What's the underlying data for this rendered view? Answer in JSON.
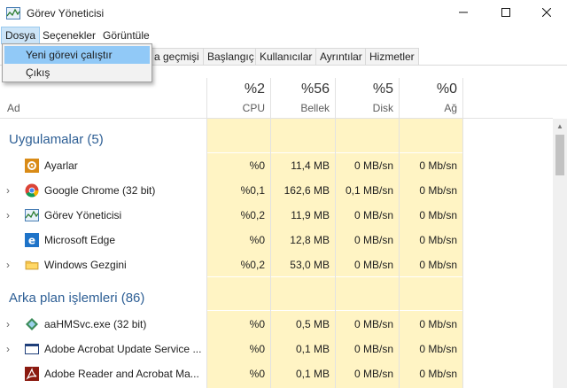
{
  "window": {
    "title": "Görev Yöneticisi"
  },
  "menubar": {
    "items": [
      "Dosya",
      "Seçenekler",
      "Görüntüle"
    ]
  },
  "dropdown": {
    "items": [
      "Yeni görevi çalıştır",
      "Çıkış"
    ],
    "highlighted_index": 0
  },
  "tabs": [
    "a geçmişi",
    "Başlangıç",
    "Kullanıcılar",
    "Ayrıntılar",
    "Hizmetler"
  ],
  "columns": {
    "name": "Ad",
    "cpu": {
      "pct": "%2",
      "label": "CPU"
    },
    "mem": {
      "pct": "%56",
      "label": "Bellek"
    },
    "disk": {
      "pct": "%5",
      "label": "Disk"
    },
    "net": {
      "pct": "%0",
      "label": "Ağ"
    }
  },
  "groups": {
    "apps": "Uygulamalar (5)",
    "background": "Arka plan işlemleri (86)"
  },
  "rows": [
    {
      "name": "Ayarlar",
      "icon": "settings-gear-icon",
      "expandable": false,
      "cpu": "%0",
      "mem": "11,4 MB",
      "disk": "0 MB/sn",
      "net": "0 Mb/sn"
    },
    {
      "name": "Google Chrome (32 bit)",
      "icon": "chrome-icon",
      "expandable": true,
      "cpu": "%0,1",
      "mem": "162,6 MB",
      "disk": "0,1 MB/sn",
      "net": "0 Mb/sn"
    },
    {
      "name": "Görev Yöneticisi",
      "icon": "task-manager-icon",
      "expandable": true,
      "cpu": "%0,2",
      "mem": "11,9 MB",
      "disk": "0 MB/sn",
      "net": "0 Mb/sn"
    },
    {
      "name": "Microsoft Edge",
      "icon": "edge-icon",
      "expandable": false,
      "cpu": "%0",
      "mem": "12,8 MB",
      "disk": "0 MB/sn",
      "net": "0 Mb/sn"
    },
    {
      "name": "Windows Gezgini",
      "icon": "folder-icon",
      "expandable": true,
      "cpu": "%0,2",
      "mem": "53,0 MB",
      "disk": "0 MB/sn",
      "net": "0 Mb/sn"
    },
    {
      "name": "aaHMSvc.exe (32 bit)",
      "icon": "service-diamond-icon",
      "expandable": true,
      "cpu": "%0",
      "mem": "0,5 MB",
      "disk": "0 MB/sn",
      "net": "0 Mb/sn"
    },
    {
      "name": "Adobe Acrobat Update Service ...",
      "icon": "window-frame-icon",
      "expandable": true,
      "cpu": "%0",
      "mem": "0,1 MB",
      "disk": "0 MB/sn",
      "net": "0 Mb/sn"
    },
    {
      "name": "Adobe Reader and Acrobat Ma...",
      "icon": "acrobat-icon",
      "expandable": false,
      "cpu": "%0",
      "mem": "0,1 MB",
      "disk": "0 MB/sn",
      "net": "0 Mb/sn"
    }
  ],
  "colors": {
    "accent": "#2e5f95",
    "heat": "#fff4c4",
    "menu_highlight": "#91c9f7"
  }
}
